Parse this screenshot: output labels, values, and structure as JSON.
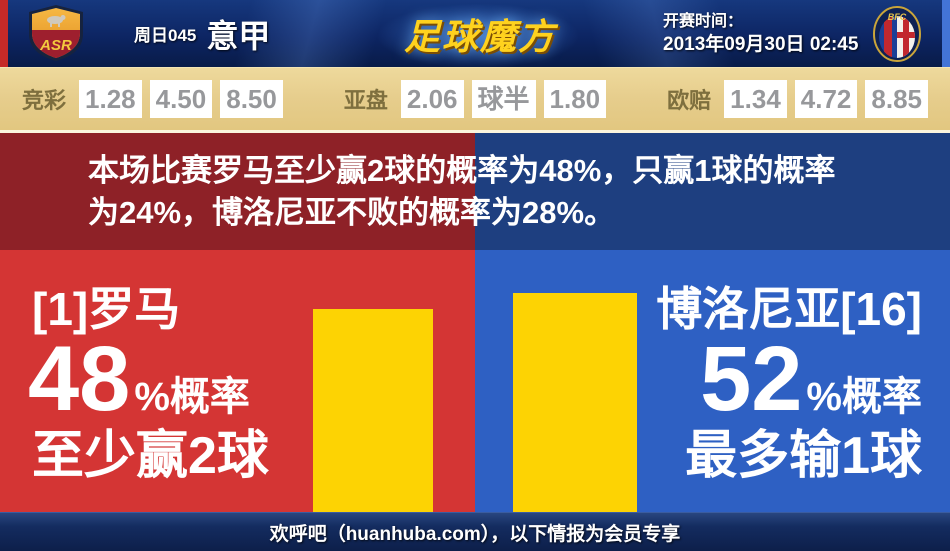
{
  "header": {
    "match_code": "周日045",
    "league": "意甲",
    "site_logo": "足球魔方",
    "kickoff_label": "开赛时间：",
    "kickoff_datetime": "2013年09月30日 02:45",
    "home_crest_text": "ASR",
    "away_crest_text": "BFC"
  },
  "odds": {
    "groups": [
      {
        "label": "竞彩",
        "values": [
          "1.28",
          "4.50",
          "8.50"
        ]
      },
      {
        "label": "亚盘",
        "values": [
          "2.06",
          "球半",
          "1.80"
        ]
      },
      {
        "label": "欧赔",
        "values": [
          "1.34",
          "4.72",
          "8.85"
        ]
      }
    ]
  },
  "summary": {
    "line1": "本场比赛罗马至少赢2球的概率为48%，只赢1球的概率",
    "line2": "为24%，博洛尼亚不败的概率为28%。"
  },
  "home_panel": {
    "team": "[1]罗马",
    "percent": "48",
    "percent_suffix": "%概率",
    "outcome": "至少赢2球"
  },
  "away_panel": {
    "team": "博洛尼亚[16]",
    "percent": "52",
    "percent_suffix": "%概率",
    "outcome": "最多输1球"
  },
  "footer": {
    "text": "欢呼吧（huanhuba.com），以下情报为会员专享"
  },
  "chart_data": {
    "type": "bar",
    "categories": [
      "罗马 至少赢2球",
      "博洛尼亚 最多输1球"
    ],
    "values": [
      48,
      52
    ],
    "unit": "%",
    "bar_color": "#fdd303"
  },
  "colors": {
    "header_navy": "#0d2563",
    "header_left_stripe": "#c62a28",
    "header_right_stripe": "#4374d6",
    "logo_gold": "#ffd21e",
    "odds_background": "#e6cd8c",
    "odds_label": "#7e6f3e",
    "odds_value": "#97989b",
    "dark_red": "#8e2127",
    "dark_blue": "#1e3f80",
    "bright_red": "#d43534",
    "bright_blue": "#2e60c3",
    "bar_yellow": "#fdd303",
    "footer_navy": "#142c60"
  }
}
